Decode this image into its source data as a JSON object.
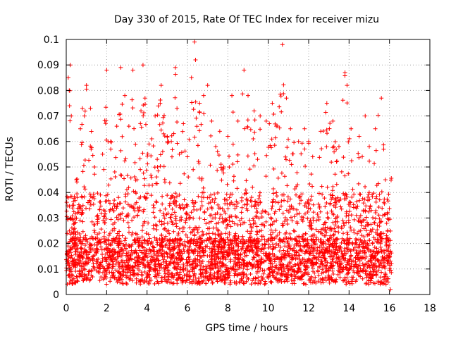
{
  "chart_data": {
    "type": "scatter",
    "title": "Day 330 of 2015, Rate Of TEC Index for receiver mizu",
    "xlabel": "GPS time / hours",
    "ylabel": "ROTI / TECUs",
    "xlim": [
      0,
      18
    ],
    "ylim": [
      0,
      0.1
    ],
    "x_ticks": [
      0,
      2,
      4,
      6,
      8,
      10,
      12,
      14,
      16,
      18
    ],
    "y_ticks": [
      0,
      0.01,
      0.02,
      0.03,
      0.04,
      0.05,
      0.06,
      0.07,
      0.08,
      0.09,
      0.1
    ],
    "x_tick_labels": [
      "0",
      "2",
      "4",
      "6",
      "8",
      "10",
      "12",
      "14",
      "16",
      "18"
    ],
    "y_tick_labels": [
      "0",
      "0.01",
      "0.02",
      "0.03",
      "0.04",
      "0.05",
      "0.06",
      "0.07",
      "0.08",
      "0.09",
      "0.1"
    ],
    "grid": true,
    "marker": "+",
    "series_color": "#ff0000",
    "data_x_range": [
      0,
      16.1
    ],
    "points": [
      [
        0.05,
        0.012
      ],
      [
        0.1,
        0.085
      ],
      [
        0.15,
        0.08
      ],
      [
        0.2,
        0.09
      ],
      [
        0.25,
        0.07
      ],
      [
        0.3,
        0.035
      ],
      [
        0.4,
        0.02
      ],
      [
        0.5,
        0.045
      ],
      [
        0.7,
        0.065
      ],
      [
        0.8,
        0.073
      ],
      [
        0.9,
        0.07
      ],
      [
        1.0,
        0.082
      ],
      [
        1.2,
        0.073
      ],
      [
        1.4,
        0.05
      ],
      [
        1.6,
        0.03
      ],
      [
        1.8,
        0.055
      ],
      [
        2.0,
        0.088
      ],
      [
        2.2,
        0.06
      ],
      [
        2.5,
        0.066
      ],
      [
        2.7,
        0.089
      ],
      [
        2.9,
        0.078
      ],
      [
        3.1,
        0.066
      ],
      [
        3.3,
        0.088
      ],
      [
        3.5,
        0.045
      ],
      [
        3.7,
        0.072
      ],
      [
        3.8,
        0.09
      ],
      [
        3.9,
        0.077
      ],
      [
        4.1,
        0.059
      ],
      [
        4.4,
        0.07
      ],
      [
        4.7,
        0.082
      ],
      [
        5.0,
        0.062
      ],
      [
        5.2,
        0.06
      ],
      [
        5.4,
        0.089
      ],
      [
        5.6,
        0.055
      ],
      [
        5.8,
        0.067
      ],
      [
        6.0,
        0.054
      ],
      [
        6.2,
        0.085
      ],
      [
        6.35,
        0.099
      ],
      [
        6.4,
        0.092
      ],
      [
        6.6,
        0.075
      ],
      [
        6.8,
        0.078
      ],
      [
        7.0,
        0.082
      ],
      [
        7.2,
        0.068
      ],
      [
        7.4,
        0.058
      ],
      [
        7.6,
        0.064
      ],
      [
        7.8,
        0.05
      ],
      [
        8.0,
        0.062
      ],
      [
        8.2,
        0.078
      ],
      [
        8.5,
        0.068
      ],
      [
        8.8,
        0.088
      ],
      [
        9.0,
        0.078
      ],
      [
        9.3,
        0.072
      ],
      [
        9.6,
        0.07
      ],
      [
        9.9,
        0.068
      ],
      [
        10.2,
        0.075
      ],
      [
        10.4,
        0.066
      ],
      [
        10.7,
        0.098
      ],
      [
        10.9,
        0.077
      ],
      [
        11.1,
        0.065
      ],
      [
        11.5,
        0.06
      ],
      [
        11.8,
        0.065
      ],
      [
        12.0,
        0.06
      ],
      [
        12.2,
        0.054
      ],
      [
        12.6,
        0.064
      ],
      [
        12.9,
        0.075
      ],
      [
        13.2,
        0.068
      ],
      [
        13.5,
        0.058
      ],
      [
        13.8,
        0.087
      ],
      [
        13.9,
        0.082
      ],
      [
        14.1,
        0.065
      ],
      [
        14.5,
        0.062
      ],
      [
        14.8,
        0.07
      ],
      [
        15.0,
        0.058
      ],
      [
        15.3,
        0.065
      ],
      [
        15.6,
        0.077
      ],
      [
        15.8,
        0.045
      ],
      [
        16.0,
        0.015
      ],
      [
        16.05,
        0.002
      ]
    ]
  }
}
